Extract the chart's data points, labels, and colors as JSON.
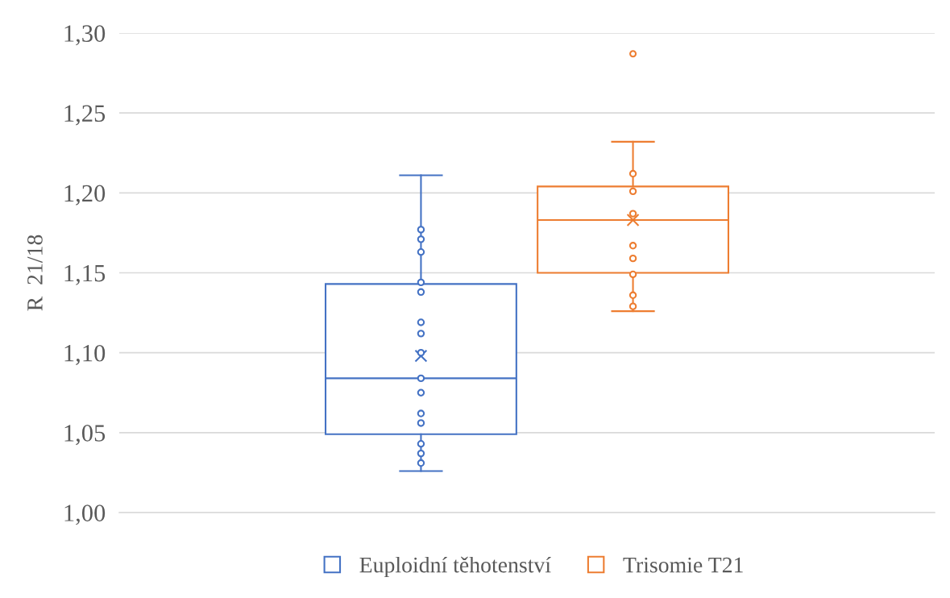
{
  "chart_data": {
    "type": "box",
    "ylabel": "R  21/18",
    "categories": [
      null
    ],
    "ylim": [
      1.0,
      1.3
    ],
    "yticks": [
      {
        "value": 1.0,
        "label": "1,00"
      },
      {
        "value": 1.05,
        "label": "1,05"
      },
      {
        "value": 1.1,
        "label": "1,10"
      },
      {
        "value": 1.15,
        "label": "1,15"
      },
      {
        "value": 1.2,
        "label": "1,20"
      },
      {
        "value": 1.25,
        "label": "1,25"
      },
      {
        "value": 1.3,
        "label": "1,30"
      }
    ],
    "grid": "y",
    "legend": "bottom",
    "tick_labels": "y",
    "series": [
      {
        "name": "Euploidní těhotenství",
        "color": "#4472c4",
        "boxes": [
          {
            "low": 1.026,
            "q1": 1.049,
            "median": 1.084,
            "q3": 1.143,
            "high": 1.211,
            "mean": 1.098
          }
        ]
      },
      {
        "name": "Trisomie T21",
        "color": "#ed7d31",
        "boxes": [
          {
            "low": 1.126,
            "q1": 1.15,
            "median": 1.183,
            "q3": 1.204,
            "high": 1.232,
            "mean": 1.183,
            "outliers": [
              1.287
            ]
          }
        ]
      },
      {
        "type": "scatter",
        "color": "#4472c4",
        "marker": "circle",
        "x": [
          null,
          null,
          null,
          null,
          null,
          null,
          null,
          null,
          null,
          null,
          null,
          null,
          null,
          null,
          null
        ],
        "values": [
          1.177,
          1.171,
          1.163,
          1.144,
          1.138,
          1.119,
          1.112,
          1.1,
          1.084,
          1.075,
          1.062,
          1.056,
          1.043,
          1.037,
          1.031
        ]
      },
      {
        "type": "scatter",
        "color": "#ed7d31",
        "marker": "circle",
        "x": [
          null,
          null,
          null,
          null,
          null,
          null,
          null,
          null
        ],
        "values": [
          1.212,
          1.201,
          1.187,
          1.167,
          1.159,
          1.149,
          1.136,
          1.129
        ]
      }
    ]
  }
}
